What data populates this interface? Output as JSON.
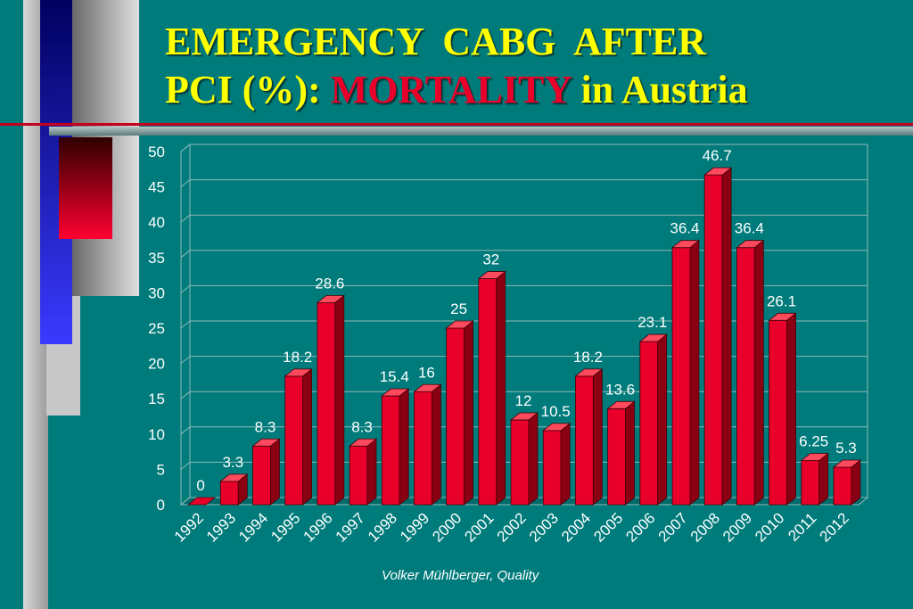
{
  "slide": {
    "title_line1": "EMERGENCY  CABG  AFTER",
    "title_line2_prefix": "PCI (%): ",
    "title_line2_highlight": "MORTALITY",
    "title_line2_suffix": " in Austria",
    "credit": "Volker Mühlberger, Quality"
  },
  "colors": {
    "background": "#007b7b",
    "bar_front": "#e8002a",
    "bar_top": "#ff4a5e",
    "bar_side": "#8a0012",
    "title": "#ffff00",
    "highlight": "#e8002a"
  },
  "chart_data": {
    "type": "bar",
    "title": "",
    "xlabel": "",
    "ylabel": "",
    "categories": [
      "1992",
      "1993",
      "1994",
      "1995",
      "1996",
      "1997",
      "1998",
      "1999",
      "2000",
      "2001",
      "2002",
      "2003",
      "2004",
      "2005",
      "2006",
      "2007",
      "2008",
      "2009",
      "2010",
      "2011",
      "2012"
    ],
    "values": [
      0,
      3.3,
      8.3,
      18.2,
      28.6,
      8.3,
      15.4,
      16,
      25,
      32,
      12,
      10.5,
      18.2,
      13.6,
      23.1,
      36.4,
      46.7,
      36.4,
      26.1,
      6.25,
      5.3
    ],
    "value_labels": [
      "0",
      "3.3",
      "8.3",
      "18.2",
      "28.6",
      "8.3",
      "15.4",
      "16",
      "25",
      "32",
      "12",
      "10.5",
      "18.2",
      "13.6",
      "23.1",
      "36.4",
      "46.7",
      "36.4",
      "26.1",
      "6.25",
      "5.3"
    ],
    "ylim": [
      0,
      50
    ],
    "yticks": [
      "0",
      "5",
      "10",
      "15",
      "20",
      "25",
      "30",
      "35",
      "40",
      "45",
      "50"
    ],
    "grid": true,
    "legend": "none"
  }
}
